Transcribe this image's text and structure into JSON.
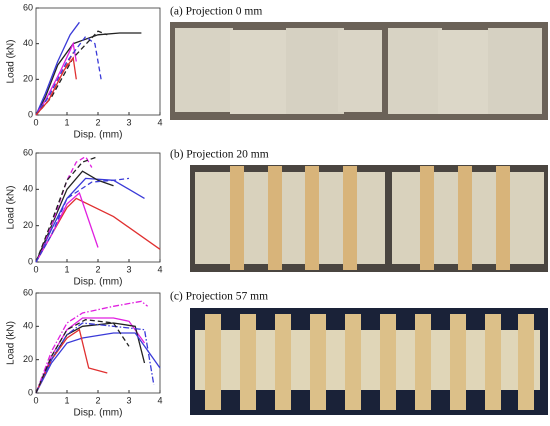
{
  "chart_data": [
    {
      "type": "line",
      "xlabel": "Disp. (mm)",
      "ylabel": "Load (kN)",
      "xlim": [
        0,
        4
      ],
      "ylim": [
        0,
        60
      ],
      "xticks": [
        0,
        1,
        2,
        3,
        4
      ],
      "yticks": [
        0,
        20,
        40,
        60
      ],
      "series": [
        {
          "color": "#222222",
          "dash": "solid",
          "x": [
            0,
            0.3,
            0.7,
            1.2,
            2,
            2.7,
            3.4
          ],
          "values": [
            0,
            10,
            28,
            40,
            45,
            46,
            46
          ]
        },
        {
          "color": "#3a3ad8",
          "dash": "solid",
          "x": [
            0,
            0.3,
            0.7,
            1.1,
            1.4
          ],
          "values": [
            0,
            12,
            30,
            45,
            52
          ]
        },
        {
          "color": "#e020e0",
          "dash": "solid",
          "x": [
            0,
            0.3,
            0.8,
            1.2,
            1.3
          ],
          "values": [
            0,
            8,
            25,
            40,
            30
          ]
        },
        {
          "color": "#e03030",
          "dash": "dashed",
          "x": [
            0,
            0.4,
            0.9,
            1.2
          ],
          "values": [
            0,
            8,
            25,
            35
          ]
        },
        {
          "color": "#3a3ad8",
          "dash": "dashed",
          "x": [
            0,
            0.4,
            1,
            1.6,
            1.9,
            2.1
          ],
          "values": [
            0,
            10,
            30,
            44,
            40,
            20
          ]
        },
        {
          "color": "#222222",
          "dash": "dashed",
          "x": [
            0,
            0.5,
            1.2,
            2,
            2.3
          ],
          "values": [
            0,
            10,
            32,
            47,
            45
          ]
        },
        {
          "color": "#e03030",
          "dash": "solid",
          "x": [
            0,
            0.4,
            0.9,
            1.2,
            1.3
          ],
          "values": [
            0,
            8,
            25,
            32,
            20
          ]
        }
      ]
    },
    {
      "type": "line",
      "xlabel": "Disp. (mm)",
      "ylabel": "Load (kN)",
      "xlim": [
        0,
        4
      ],
      "ylim": [
        0,
        60
      ],
      "xticks": [
        0,
        1,
        2,
        3,
        4
      ],
      "yticks": [
        0,
        20,
        40,
        60
      ],
      "series": [
        {
          "color": "#e03030",
          "dash": "solid",
          "x": [
            0,
            0.5,
            1,
            1.3,
            2.5,
            4
          ],
          "values": [
            0,
            15,
            30,
            35,
            25,
            7
          ]
        },
        {
          "color": "#3a3ad8",
          "dash": "solid",
          "x": [
            0,
            0.5,
            1,
            1.6,
            2.5,
            3.5
          ],
          "values": [
            0,
            18,
            35,
            46,
            45,
            35
          ]
        },
        {
          "color": "#222222",
          "dash": "solid",
          "x": [
            0,
            0.5,
            1,
            1.5,
            2,
            2.5
          ],
          "values": [
            0,
            20,
            40,
            50,
            45,
            42
          ]
        },
        {
          "color": "#e020e0",
          "dash": "solid",
          "x": [
            0,
            0.5,
            1,
            1.4,
            2
          ],
          "values": [
            0,
            15,
            32,
            38,
            8
          ]
        },
        {
          "color": "#e020e0",
          "dash": "dashed",
          "x": [
            0,
            0.5,
            1,
            1.3,
            1.6,
            1.8
          ],
          "values": [
            0,
            20,
            45,
            55,
            58,
            52
          ]
        },
        {
          "color": "#222222",
          "dash": "dashed",
          "x": [
            0,
            0.5,
            1,
            1.5,
            2
          ],
          "values": [
            0,
            22,
            45,
            55,
            58
          ]
        },
        {
          "color": "#3a3ad8",
          "dash": "dashed",
          "x": [
            0,
            0.5,
            1,
            1.8,
            2.5,
            3
          ],
          "values": [
            0,
            15,
            35,
            44,
            45,
            46
          ]
        }
      ]
    },
    {
      "type": "line",
      "xlabel": "Disp. (mm)",
      "ylabel": "Load (kN)",
      "xlim": [
        0,
        4
      ],
      "ylim": [
        0,
        60
      ],
      "xticks": [
        0,
        1,
        2,
        3,
        4
      ],
      "yticks": [
        0,
        20,
        40,
        60
      ],
      "series": [
        {
          "color": "#e020e0",
          "dash": "dashdot",
          "x": [
            0,
            0.5,
            1,
            1.5,
            2.5,
            3.4,
            3.6
          ],
          "values": [
            0,
            25,
            42,
            48,
            52,
            55,
            52
          ]
        },
        {
          "color": "#e020e0",
          "dash": "solid",
          "x": [
            0,
            0.5,
            1,
            1.5,
            2.5,
            3,
            3.5
          ],
          "values": [
            0,
            22,
            38,
            45,
            45,
            43,
            30
          ]
        },
        {
          "color": "#222222",
          "dash": "solid",
          "x": [
            0,
            0.5,
            1,
            1.5,
            2.5,
            3.2,
            3.5
          ],
          "values": [
            0,
            20,
            35,
            40,
            42,
            40,
            18
          ]
        },
        {
          "color": "#3a3ad8",
          "dash": "solid",
          "x": [
            0,
            0.5,
            1,
            1.5,
            2.5,
            3.2,
            4
          ],
          "values": [
            0,
            18,
            30,
            33,
            36,
            36,
            15
          ]
        },
        {
          "color": "#e03030",
          "dash": "solid",
          "x": [
            0,
            0.5,
            1,
            1.4,
            1.7,
            2.3
          ],
          "values": [
            0,
            20,
            33,
            38,
            15,
            12
          ]
        },
        {
          "color": "#3a3ad8",
          "dash": "dashdot",
          "x": [
            0,
            0.5,
            1,
            1.5,
            2.5,
            3.5,
            3.8
          ],
          "values": [
            0,
            20,
            35,
            42,
            40,
            38,
            5
          ]
        },
        {
          "color": "#222222",
          "dash": "dashed",
          "x": [
            0,
            0.5,
            1,
            1.6,
            2.5,
            3
          ],
          "values": [
            0,
            22,
            38,
            44,
            42,
            28
          ]
        }
      ]
    }
  ],
  "panels": [
    {
      "caption": "(a) Projection  0 mm"
    },
    {
      "caption": "(b) Projection  20 mm"
    },
    {
      "caption": "(c) Projection  57 mm"
    }
  ]
}
